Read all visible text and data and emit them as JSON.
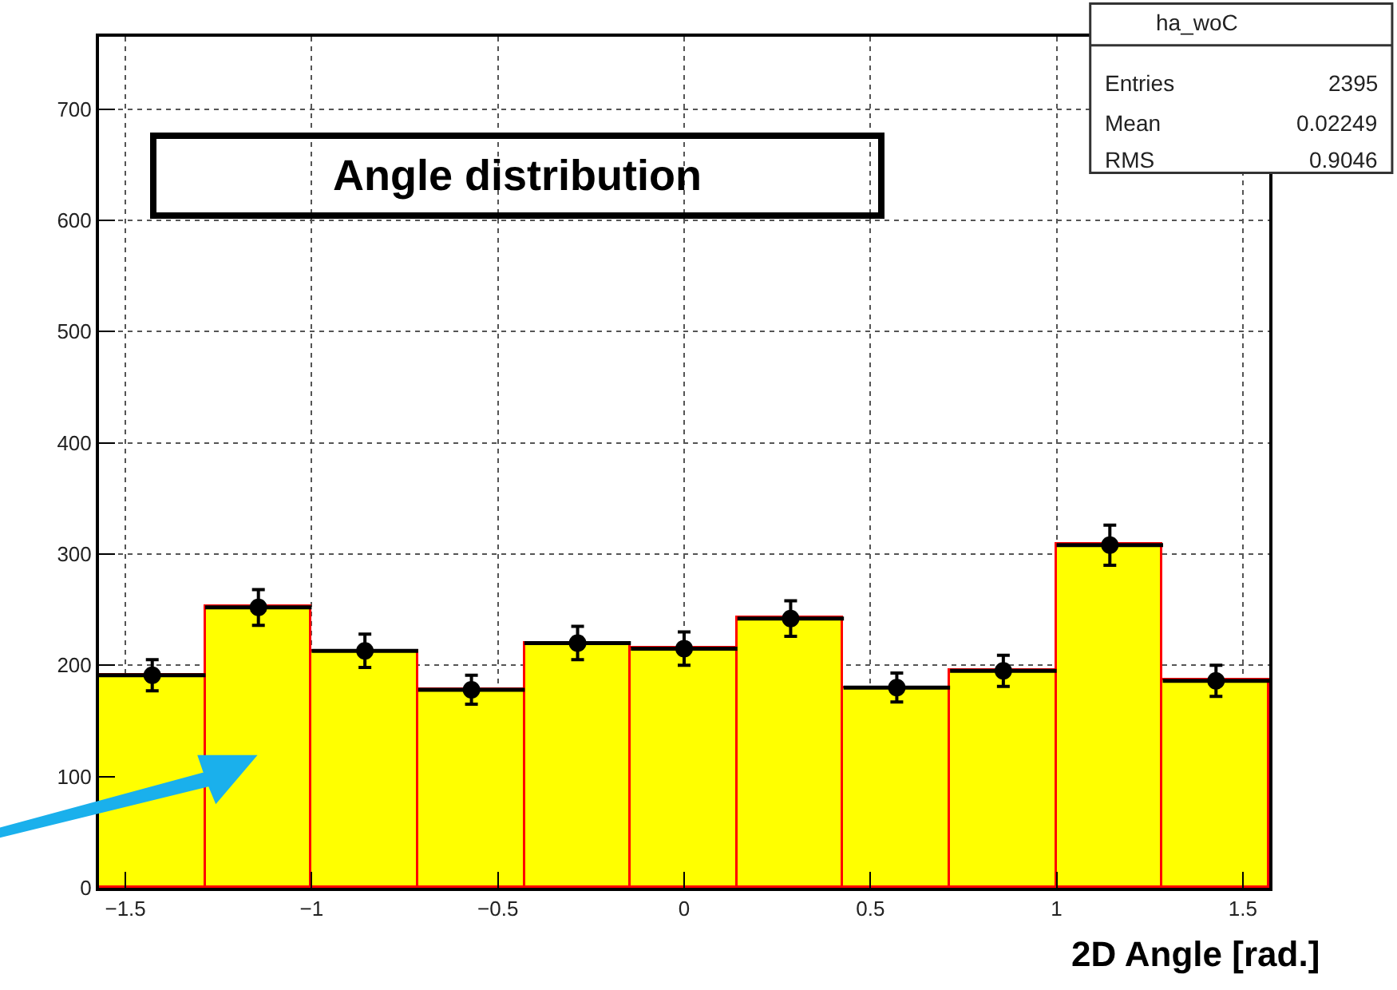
{
  "chart_data": {
    "type": "histogram",
    "title": "Angle distribution",
    "xlabel": "2D Angle [rad.]",
    "bins": [
      -1.571,
      -1.285,
      -1.0,
      -0.714,
      -0.428,
      -0.143,
      0.143,
      0.428,
      0.714,
      1.0,
      1.285,
      1.571
    ],
    "series": [
      {
        "color": "#ffff00",
        "values": [
          191,
          252,
          213,
          178,
          220,
          215,
          242,
          180,
          195,
          308,
          186
        ]
      },
      {
        "type": "scatter",
        "color": "#000000",
        "marker": "circle",
        "x": [
          -1.428,
          -1.143,
          -0.857,
          -0.571,
          -0.286,
          0,
          0.286,
          0.571,
          0.857,
          1.143,
          1.428
        ],
        "values": [
          191,
          252,
          213,
          178,
          220,
          215,
          242,
          180,
          195,
          308,
          186
        ],
        "errors": [
          14,
          16,
          15,
          13,
          15,
          15,
          16,
          13,
          14,
          18,
          14
        ],
        "xerrors": [
          0.143,
          0.143,
          0.143,
          0.143,
          0.143,
          0.143,
          0.143,
          0.143,
          0.143,
          0.143,
          0.143
        ]
      }
    ],
    "grid": true,
    "xlim": [
      -1.571,
      1.571
    ],
    "ylim": [
      0,
      765
    ],
    "xticks": [
      -1.5,
      -1,
      -0.5,
      0,
      0.5,
      1,
      1.5
    ],
    "yticks": [
      0,
      100,
      200,
      300,
      400,
      500,
      600,
      700
    ],
    "annotations": [
      "ha_woC",
      "Entries",
      "2395",
      "Mean",
      "0.02249",
      "RMS",
      "0.9046"
    ]
  }
}
